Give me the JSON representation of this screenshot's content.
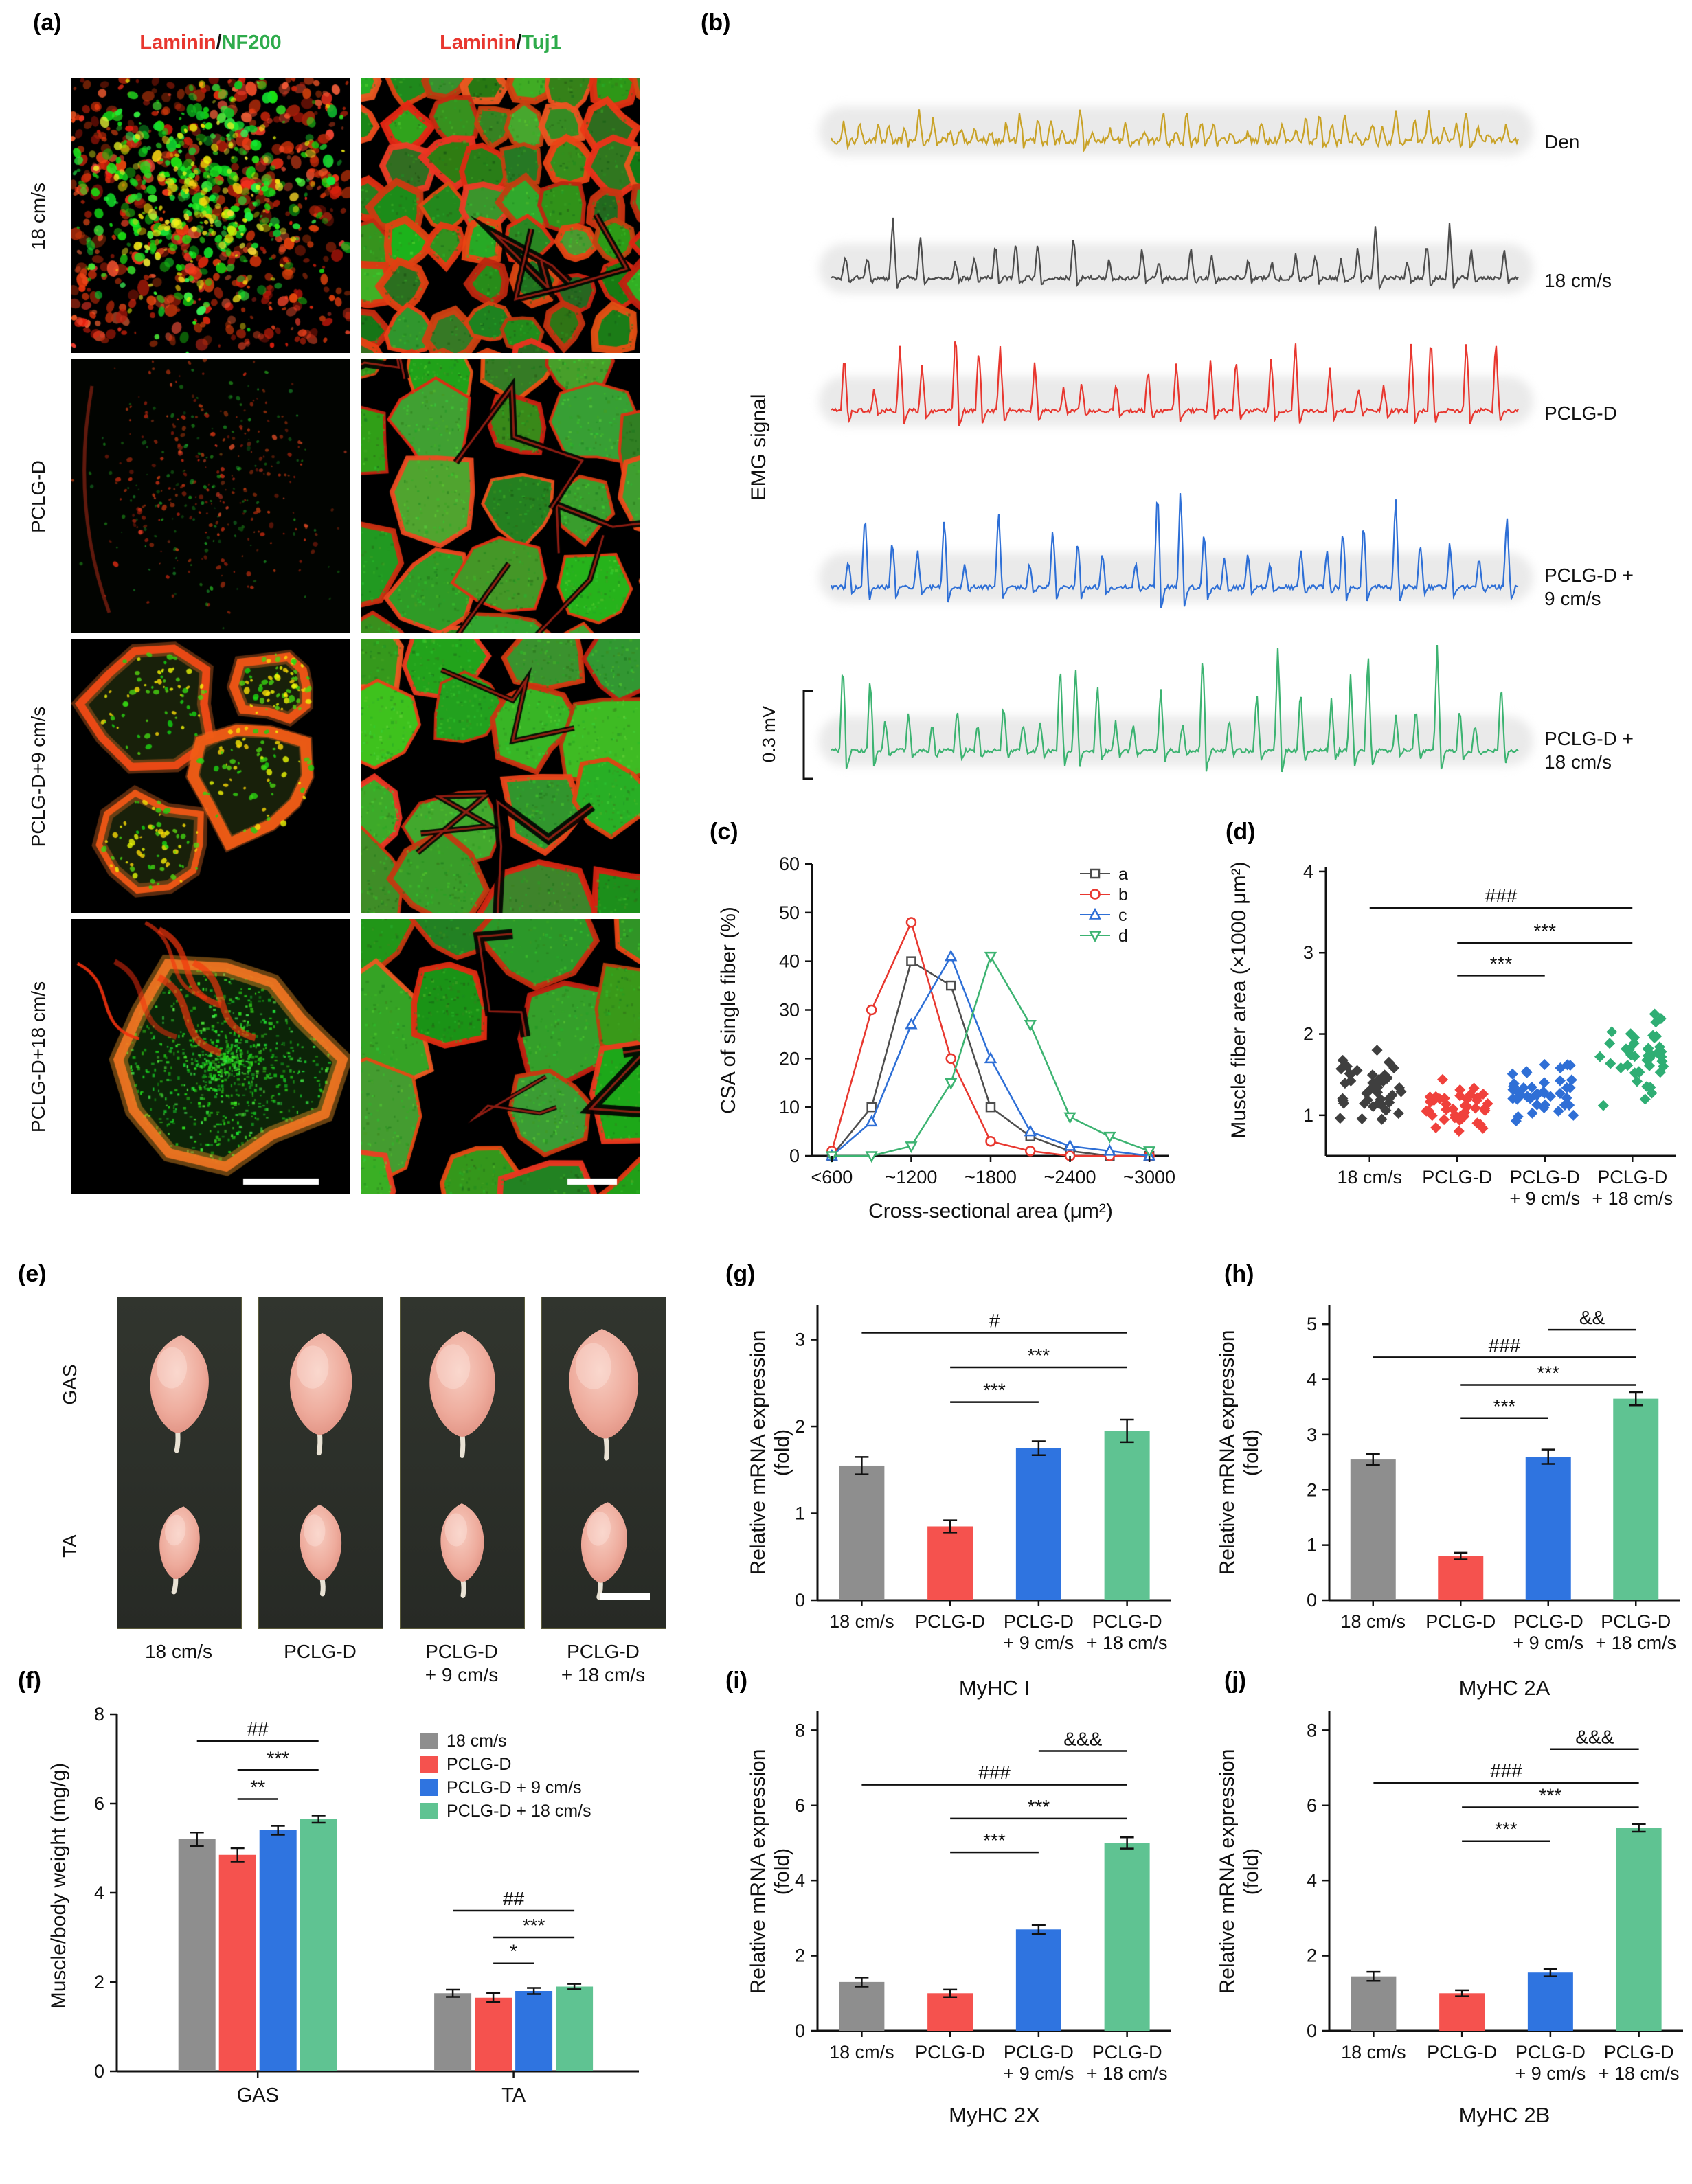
{
  "panels": {
    "a": {
      "label": "(a)",
      "col1_header": {
        "stain1": "Laminin",
        "sep": "/",
        "stain2": "NF200"
      },
      "col2_header": {
        "stain1": "Laminin",
        "sep": "/",
        "stain2": "Tuj1"
      },
      "row_labels": [
        "18 cm/s",
        "PCLG-D",
        "PCLG-D+9 cm/s",
        "PCLG-D+18 cm/s"
      ]
    },
    "b": {
      "label": "(b)"
    },
    "c": {
      "label": "(c)"
    },
    "d": {
      "label": "(d)"
    },
    "e": {
      "label": "(e)",
      "row_labels": [
        "GAS",
        "TA"
      ],
      "col_labels": [
        "18 cm/s",
        "PCLG-D",
        "PCLG-D\n+ 9 cm/s",
        "PCLG-D\n+ 18 cm/s"
      ]
    },
    "f": {
      "label": "(f)"
    },
    "g": {
      "label": "(g)"
    },
    "h": {
      "label": "(h)"
    },
    "i": {
      "label": "(i)"
    },
    "j": {
      "label": "(j)"
    }
  },
  "chart_data": [
    {
      "id": "b-emg",
      "panel": "b",
      "type": "line",
      "ylabel": "EMG signal",
      "scale_bar": "0.3 mV",
      "traces": [
        {
          "label": "Den",
          "color": "#c9a227"
        },
        {
          "label": "18 cm/s",
          "color": "#4d4d4d"
        },
        {
          "label": "PCLG-D",
          "color": "#e8372f"
        },
        {
          "label": "PCLG-D +\n9 cm/s",
          "color": "#2e6fd6"
        },
        {
          "label": "PCLG-D +\n18 cm/s",
          "color": "#3cb371"
        }
      ]
    },
    {
      "id": "c-csa-distribution",
      "panel": "c",
      "type": "line",
      "xlabel": "Cross-sectional area (μm²)",
      "ylabel": "CSA of single fiber (%)",
      "ylim": [
        0,
        60
      ],
      "yticks": [
        0,
        10,
        20,
        30,
        40,
        50,
        60
      ],
      "x_bins": [
        "<600",
        "~900",
        "~1200",
        "~1500",
        "~1800",
        "~2100",
        "~2400",
        "~2700",
        "~3000"
      ],
      "xtick_labels": [
        "<600",
        "~1200",
        "~1800",
        "~2400",
        "~3000"
      ],
      "series": [
        {
          "name": "a",
          "marker": "square",
          "color": "#4d4d4d",
          "values": [
            0,
            10,
            40,
            35,
            10,
            4,
            1,
            0,
            0
          ]
        },
        {
          "name": "b",
          "marker": "circle",
          "color": "#e8372f",
          "values": [
            1,
            30,
            48,
            20,
            3,
            1,
            0,
            0,
            0
          ]
        },
        {
          "name": "c",
          "marker": "triangle-up",
          "color": "#2e6fd6",
          "values": [
            0,
            7,
            27,
            41,
            20,
            5,
            2,
            1,
            0
          ]
        },
        {
          "name": "d",
          "marker": "triangle-down",
          "color": "#3cb371",
          "values": [
            0,
            0,
            2,
            15,
            41,
            27,
            8,
            4,
            1
          ]
        }
      ]
    },
    {
      "id": "d-muscle-fiber-area",
      "panel": "d",
      "type": "scatter",
      "ylabel": "Muscle fiber area (×1000 μm²)",
      "ylim": [
        0.5,
        4.05
      ],
      "yticks": [
        1,
        2,
        3,
        4
      ],
      "categories": [
        "18 cm/s",
        "PCLG-D",
        "PCLG-D\n+ 9 cm/s",
        "PCLG-D\n+ 18 cm/s"
      ],
      "colors": [
        "#3f3f3f",
        "#f0413c",
        "#2f6fd6",
        "#2fae74"
      ],
      "group_means": [
        1.3,
        1.05,
        1.35,
        1.75
      ],
      "group_sd": [
        0.25,
        0.15,
        0.2,
        0.3
      ],
      "n_per_group": 42,
      "significance": [
        {
          "from": 0,
          "to": 3,
          "label": "###",
          "y": 3.55
        },
        {
          "from": 1,
          "to": 3,
          "label": "***",
          "y": 3.12
        },
        {
          "from": 1,
          "to": 2,
          "label": "***",
          "y": 2.72
        }
      ]
    },
    {
      "id": "f-muscle-body-weight",
      "panel": "f",
      "type": "bar",
      "ylabel": "Muscle/body weight (mg/g)",
      "ylim": [
        0,
        8
      ],
      "yticks": [
        0,
        2,
        4,
        6,
        8
      ],
      "groups": [
        "GAS",
        "TA"
      ],
      "series": [
        {
          "name": "18 cm/s",
          "color": "#8e8e8e",
          "values": [
            5.2,
            1.75
          ],
          "errors": [
            0.15,
            0.08
          ]
        },
        {
          "name": "PCLG-D",
          "color": "#f5524e",
          "values": [
            4.85,
            1.65
          ],
          "errors": [
            0.15,
            0.1
          ]
        },
        {
          "name": "PCLG-D + 9 cm/s",
          "color": "#2f74e0",
          "values": [
            5.4,
            1.8
          ],
          "errors": [
            0.1,
            0.07
          ]
        },
        {
          "name": "PCLG-D + 18 cm/s",
          "color": "#5fc392",
          "values": [
            5.65,
            1.9
          ],
          "errors": [
            0.08,
            0.06
          ]
        }
      ],
      "significance": [
        {
          "group": 0,
          "from": 0,
          "to": 3,
          "label": "##",
          "y": 7.4
        },
        {
          "group": 0,
          "from": 1,
          "to": 3,
          "label": "***",
          "y": 6.75
        },
        {
          "group": 0,
          "from": 1,
          "to": 2,
          "label": "**",
          "y": 6.1
        },
        {
          "group": 1,
          "from": 0,
          "to": 3,
          "label": "##",
          "y": 3.6
        },
        {
          "group": 1,
          "from": 1,
          "to": 3,
          "label": "***",
          "y": 3.0
        },
        {
          "group": 1,
          "from": 1,
          "to": 2,
          "label": "*",
          "y": 2.42
        }
      ]
    },
    {
      "id": "g-myhc-i",
      "panel": "g",
      "type": "bar",
      "title": "MyHC I",
      "ylabel": "Relative mRNA expression\n(fold)",
      "ylim": [
        0,
        3.4
      ],
      "yticks": [
        0,
        1,
        2,
        3
      ],
      "categories": [
        "18 cm/s",
        "PCLG-D",
        "PCLG-D\n+ 9 cm/s",
        "PCLG-D\n+ 18 cm/s"
      ],
      "colors": [
        "#8e8e8e",
        "#f5524e",
        "#2f74e0",
        "#5fc392"
      ],
      "values": [
        1.55,
        0.85,
        1.75,
        1.95
      ],
      "errors": [
        0.1,
        0.07,
        0.08,
        0.13
      ],
      "significance": [
        {
          "from": 0,
          "to": 3,
          "label": "#",
          "y": 3.08
        },
        {
          "from": 1,
          "to": 3,
          "label": "***",
          "y": 2.68
        },
        {
          "from": 1,
          "to": 2,
          "label": "***",
          "y": 2.28
        }
      ]
    },
    {
      "id": "h-myhc-2a",
      "panel": "h",
      "type": "bar",
      "title": "MyHC 2A",
      "ylabel": "Relative mRNA expression\n(fold)",
      "ylim": [
        0,
        5.35
      ],
      "yticks": [
        0,
        1,
        2,
        3,
        4,
        5
      ],
      "categories": [
        "18 cm/s",
        "PCLG-D",
        "PCLG-D\n+ 9 cm/s",
        "PCLG-D\n+ 18 cm/s"
      ],
      "colors": [
        "#8e8e8e",
        "#f5524e",
        "#2f74e0",
        "#5fc392"
      ],
      "values": [
        2.55,
        0.8,
        2.6,
        3.65
      ],
      "errors": [
        0.1,
        0.06,
        0.13,
        0.12
      ],
      "significance": [
        {
          "from": 2,
          "to": 3,
          "label": "&&",
          "y": 4.9
        },
        {
          "from": 0,
          "to": 3,
          "label": "###",
          "y": 4.4
        },
        {
          "from": 1,
          "to": 3,
          "label": "***",
          "y": 3.9
        },
        {
          "from": 1,
          "to": 2,
          "label": "***",
          "y": 3.3
        }
      ]
    },
    {
      "id": "i-myhc-2x",
      "panel": "i",
      "type": "bar",
      "title": "MyHC 2X",
      "ylabel": "Relative mRNA expression\n(fold)",
      "ylim": [
        0,
        8.5
      ],
      "yticks": [
        0,
        2,
        4,
        6,
        8
      ],
      "categories": [
        "18 cm/s",
        "PCLG-D",
        "PCLG-D\n+ 9 cm/s",
        "PCLG-D\n+ 18 cm/s"
      ],
      "colors": [
        "#8e8e8e",
        "#f5524e",
        "#2f74e0",
        "#5fc392"
      ],
      "values": [
        1.3,
        1.0,
        2.7,
        5.0
      ],
      "errors": [
        0.12,
        0.1,
        0.12,
        0.15
      ],
      "significance": [
        {
          "from": 2,
          "to": 3,
          "label": "&&&",
          "y": 7.45
        },
        {
          "from": 0,
          "to": 3,
          "label": "###",
          "y": 6.55
        },
        {
          "from": 1,
          "to": 3,
          "label": "***",
          "y": 5.65
        },
        {
          "from": 1,
          "to": 2,
          "label": "***",
          "y": 4.75
        }
      ]
    },
    {
      "id": "j-myhc-2b",
      "panel": "j",
      "type": "bar",
      "title": "MyHC 2B",
      "ylabel": "Relative mRNA expression\n(fold)",
      "ylim": [
        0,
        8.5
      ],
      "yticks": [
        0,
        2,
        4,
        6,
        8
      ],
      "categories": [
        "18 cm/s",
        "PCLG-D",
        "PCLG-D\n+ 9 cm/s",
        "PCLG-D\n+ 18 cm/s"
      ],
      "colors": [
        "#8e8e8e",
        "#f5524e",
        "#2f74e0",
        "#5fc392"
      ],
      "values": [
        1.45,
        1.0,
        1.55,
        5.4
      ],
      "errors": [
        0.12,
        0.08,
        0.1,
        0.1
      ],
      "significance": [
        {
          "from": 2,
          "to": 3,
          "label": "&&&",
          "y": 7.5
        },
        {
          "from": 0,
          "to": 3,
          "label": "###",
          "y": 6.6
        },
        {
          "from": 1,
          "to": 3,
          "label": "***",
          "y": 5.95
        },
        {
          "from": 1,
          "to": 2,
          "label": "***",
          "y": 5.05
        }
      ]
    }
  ]
}
